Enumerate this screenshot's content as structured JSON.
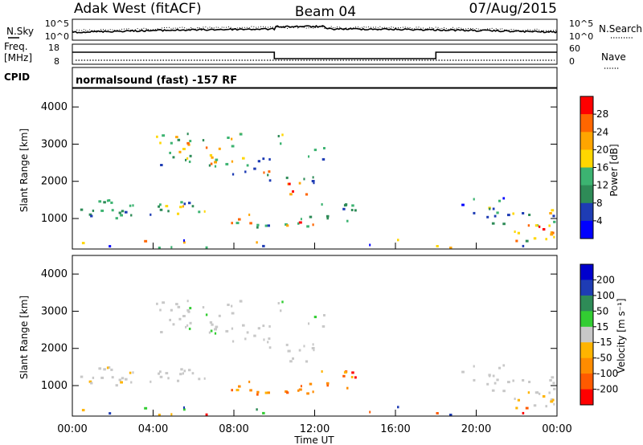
{
  "header": {
    "title": "Adak West (fitACF)",
    "beam": "Beam 04",
    "date": "07/Aug/2015"
  },
  "status_panel": {
    "left_top_label": "N.Sky",
    "left_top_ticks": [
      "10^5",
      "10^0"
    ],
    "right_top_label": "N.Search",
    "right_top_ticks": [
      "10^5",
      "10^0"
    ],
    "freq_label_line1": "Freq.",
    "freq_label_line2": "[MHz]",
    "freq_ticks": [
      "18",
      "8"
    ],
    "nave_label": "Nave",
    "nave_ticks": [
      "60",
      "0"
    ],
    "cpid_label": "CPID",
    "cpid_text": "normalsound (fast) -157 RF"
  },
  "colors": {
    "power": [
      "#0000ff",
      "#1e3cb4",
      "#2e8b57",
      "#3cb371",
      "#ffd700",
      "#ffa500",
      "#ff6600",
      "#ff0000"
    ],
    "velocity": [
      "#ff0000",
      "#ff5a00",
      "#ff8c00",
      "#ffb400",
      "#c8c8c8",
      "#32cd32",
      "#2e8b57",
      "#1e3cb4",
      "#0000cd"
    ]
  },
  "chart_data": [
    {
      "type": "heatmap",
      "title": "",
      "xlabel": "",
      "ylabel": "Slant Range [km]",
      "xlim": [
        "00:00",
        "24:00"
      ],
      "ylim": [
        180,
        4500
      ],
      "y_ticks": [
        "1000",
        "2000",
        "3000",
        "4000"
      ],
      "colorbar": {
        "label": "Power [dB]",
        "range": [
          0,
          32
        ],
        "ticks": [
          "4",
          "8",
          "12",
          "16",
          "20",
          "24",
          "28"
        ]
      }
    },
    {
      "type": "heatmap",
      "title": "",
      "xlabel": "Time UT",
      "ylabel": "Slant Range [km]",
      "xlim": [
        "00:00",
        "24:00"
      ],
      "ylim": [
        180,
        4500
      ],
      "x_ticks": [
        "00:00",
        "04:00",
        "08:00",
        "12:00",
        "16:00",
        "20:00",
        "00:00"
      ],
      "y_ticks": [
        "1000",
        "2000",
        "3000",
        "4000"
      ],
      "colorbar": {
        "label": "Velocity [m s⁻¹]",
        "ticks": [
          "200",
          "100",
          "50",
          "15",
          "-15",
          "-50",
          "-100",
          "-200"
        ]
      }
    }
  ]
}
